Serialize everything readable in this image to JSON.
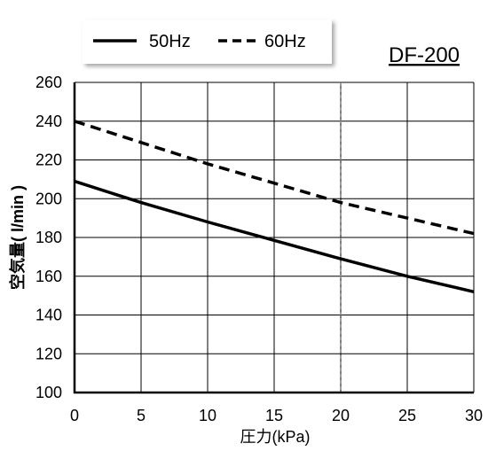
{
  "chart_data": {
    "type": "line",
    "model_label": "DF-200",
    "xlabel": "圧力(kPa)",
    "ylabel": "空気量( l/min )",
    "xlim": [
      0,
      30
    ],
    "ylim": [
      100,
      260
    ],
    "x_ticks": [
      0,
      5,
      10,
      15,
      20,
      25,
      30
    ],
    "y_ticks": [
      100,
      120,
      140,
      160,
      180,
      200,
      220,
      240,
      260
    ],
    "grid": true,
    "legend_position": "top-left",
    "reference_line_x": 20,
    "series": [
      {
        "name": "50Hz",
        "style": "solid",
        "color": "#000000",
        "x": [
          0,
          5,
          10,
          15,
          20,
          25,
          30
        ],
        "y": [
          209,
          198,
          188,
          178.5,
          169,
          160,
          152
        ]
      },
      {
        "name": "60Hz",
        "style": "dashed",
        "color": "#000000",
        "x": [
          0,
          5,
          10,
          15,
          20,
          25,
          30
        ],
        "y": [
          240,
          229,
          218,
          208,
          198,
          190,
          182
        ]
      }
    ]
  }
}
